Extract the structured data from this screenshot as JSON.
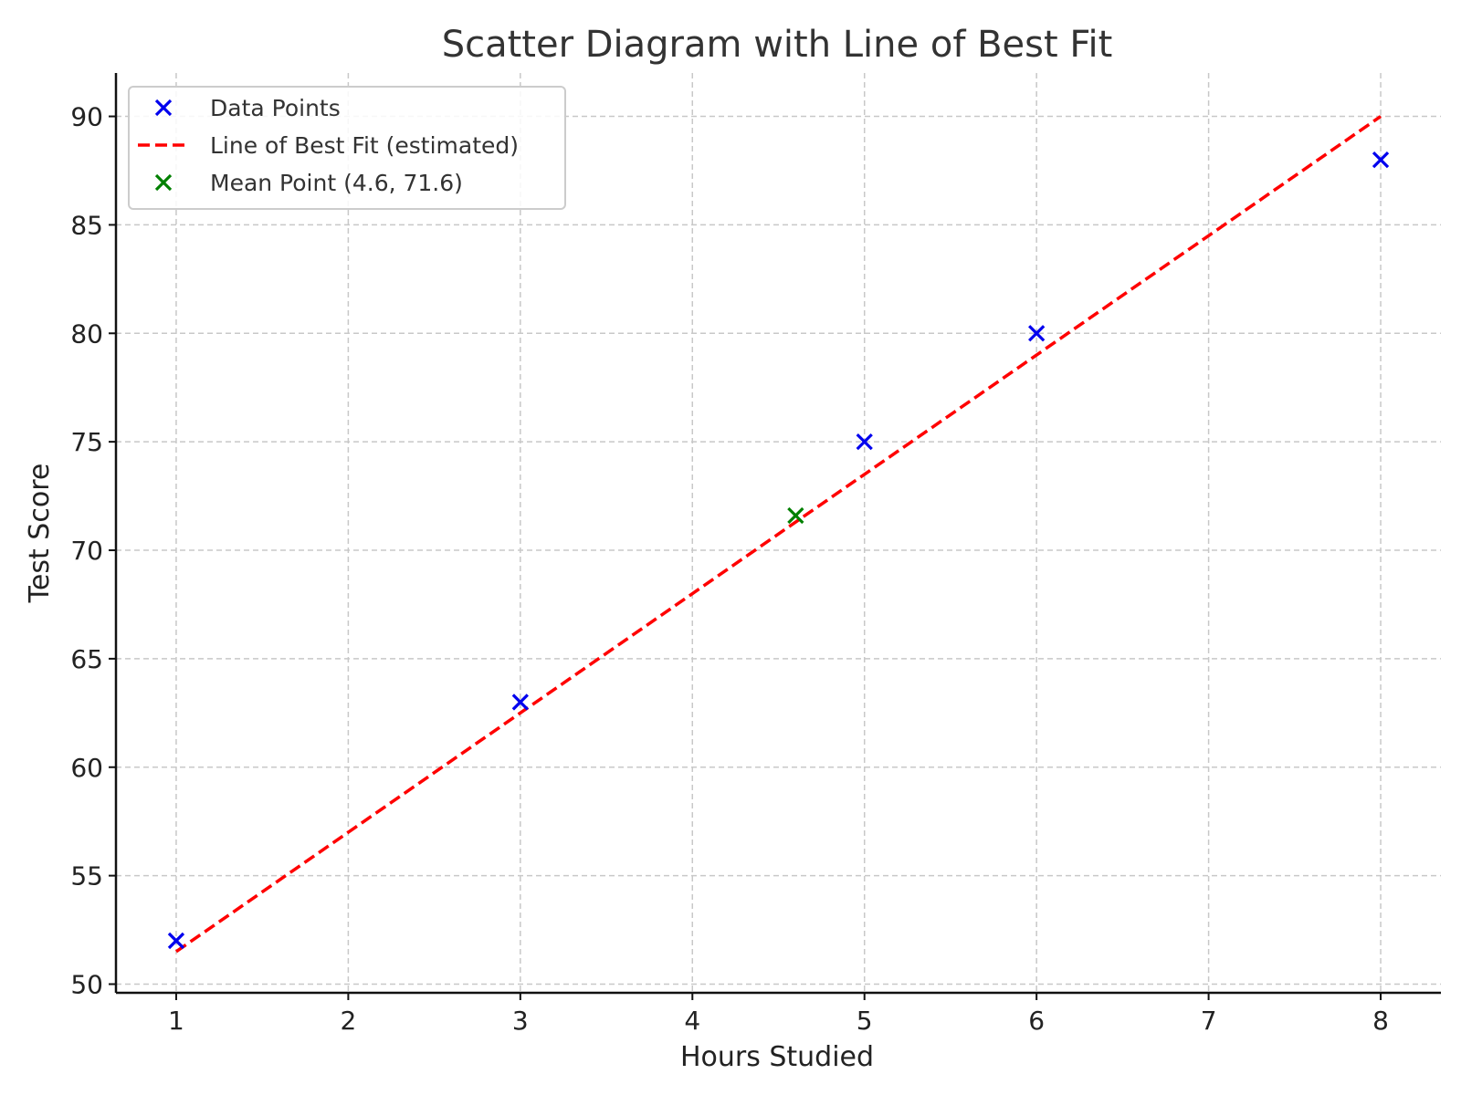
{
  "chart_data": {
    "type": "scatter",
    "title": "Scatter Diagram with Line of Best Fit",
    "xlabel": "Hours Studied",
    "ylabel": "Test Score",
    "xlim": [
      0.65,
      8.35
    ],
    "ylim": [
      49.6,
      92
    ],
    "xticks": [
      1,
      2,
      3,
      4,
      5,
      6,
      7,
      8
    ],
    "yticks": [
      50,
      55,
      60,
      65,
      70,
      75,
      80,
      85,
      90
    ],
    "grid": true,
    "legend_position": "top-left",
    "series": [
      {
        "name": "Data Points",
        "kind": "scatter",
        "marker": "x",
        "color": "#0000ee",
        "points": [
          {
            "x": 1,
            "y": 52
          },
          {
            "x": 3,
            "y": 63
          },
          {
            "x": 5,
            "y": 75
          },
          {
            "x": 6,
            "y": 80
          },
          {
            "x": 8,
            "y": 88
          }
        ]
      },
      {
        "name": "Line of Best Fit (estimated)",
        "kind": "line",
        "style": "dashed",
        "color": "#ff0000",
        "points": [
          {
            "x": 1,
            "y": 51.5
          },
          {
            "x": 8,
            "y": 90
          }
        ]
      },
      {
        "name": "Mean Point (4.6, 71.6)",
        "kind": "scatter",
        "marker": "x",
        "color": "#008000",
        "points": [
          {
            "x": 4.6,
            "y": 71.6
          }
        ]
      }
    ]
  }
}
